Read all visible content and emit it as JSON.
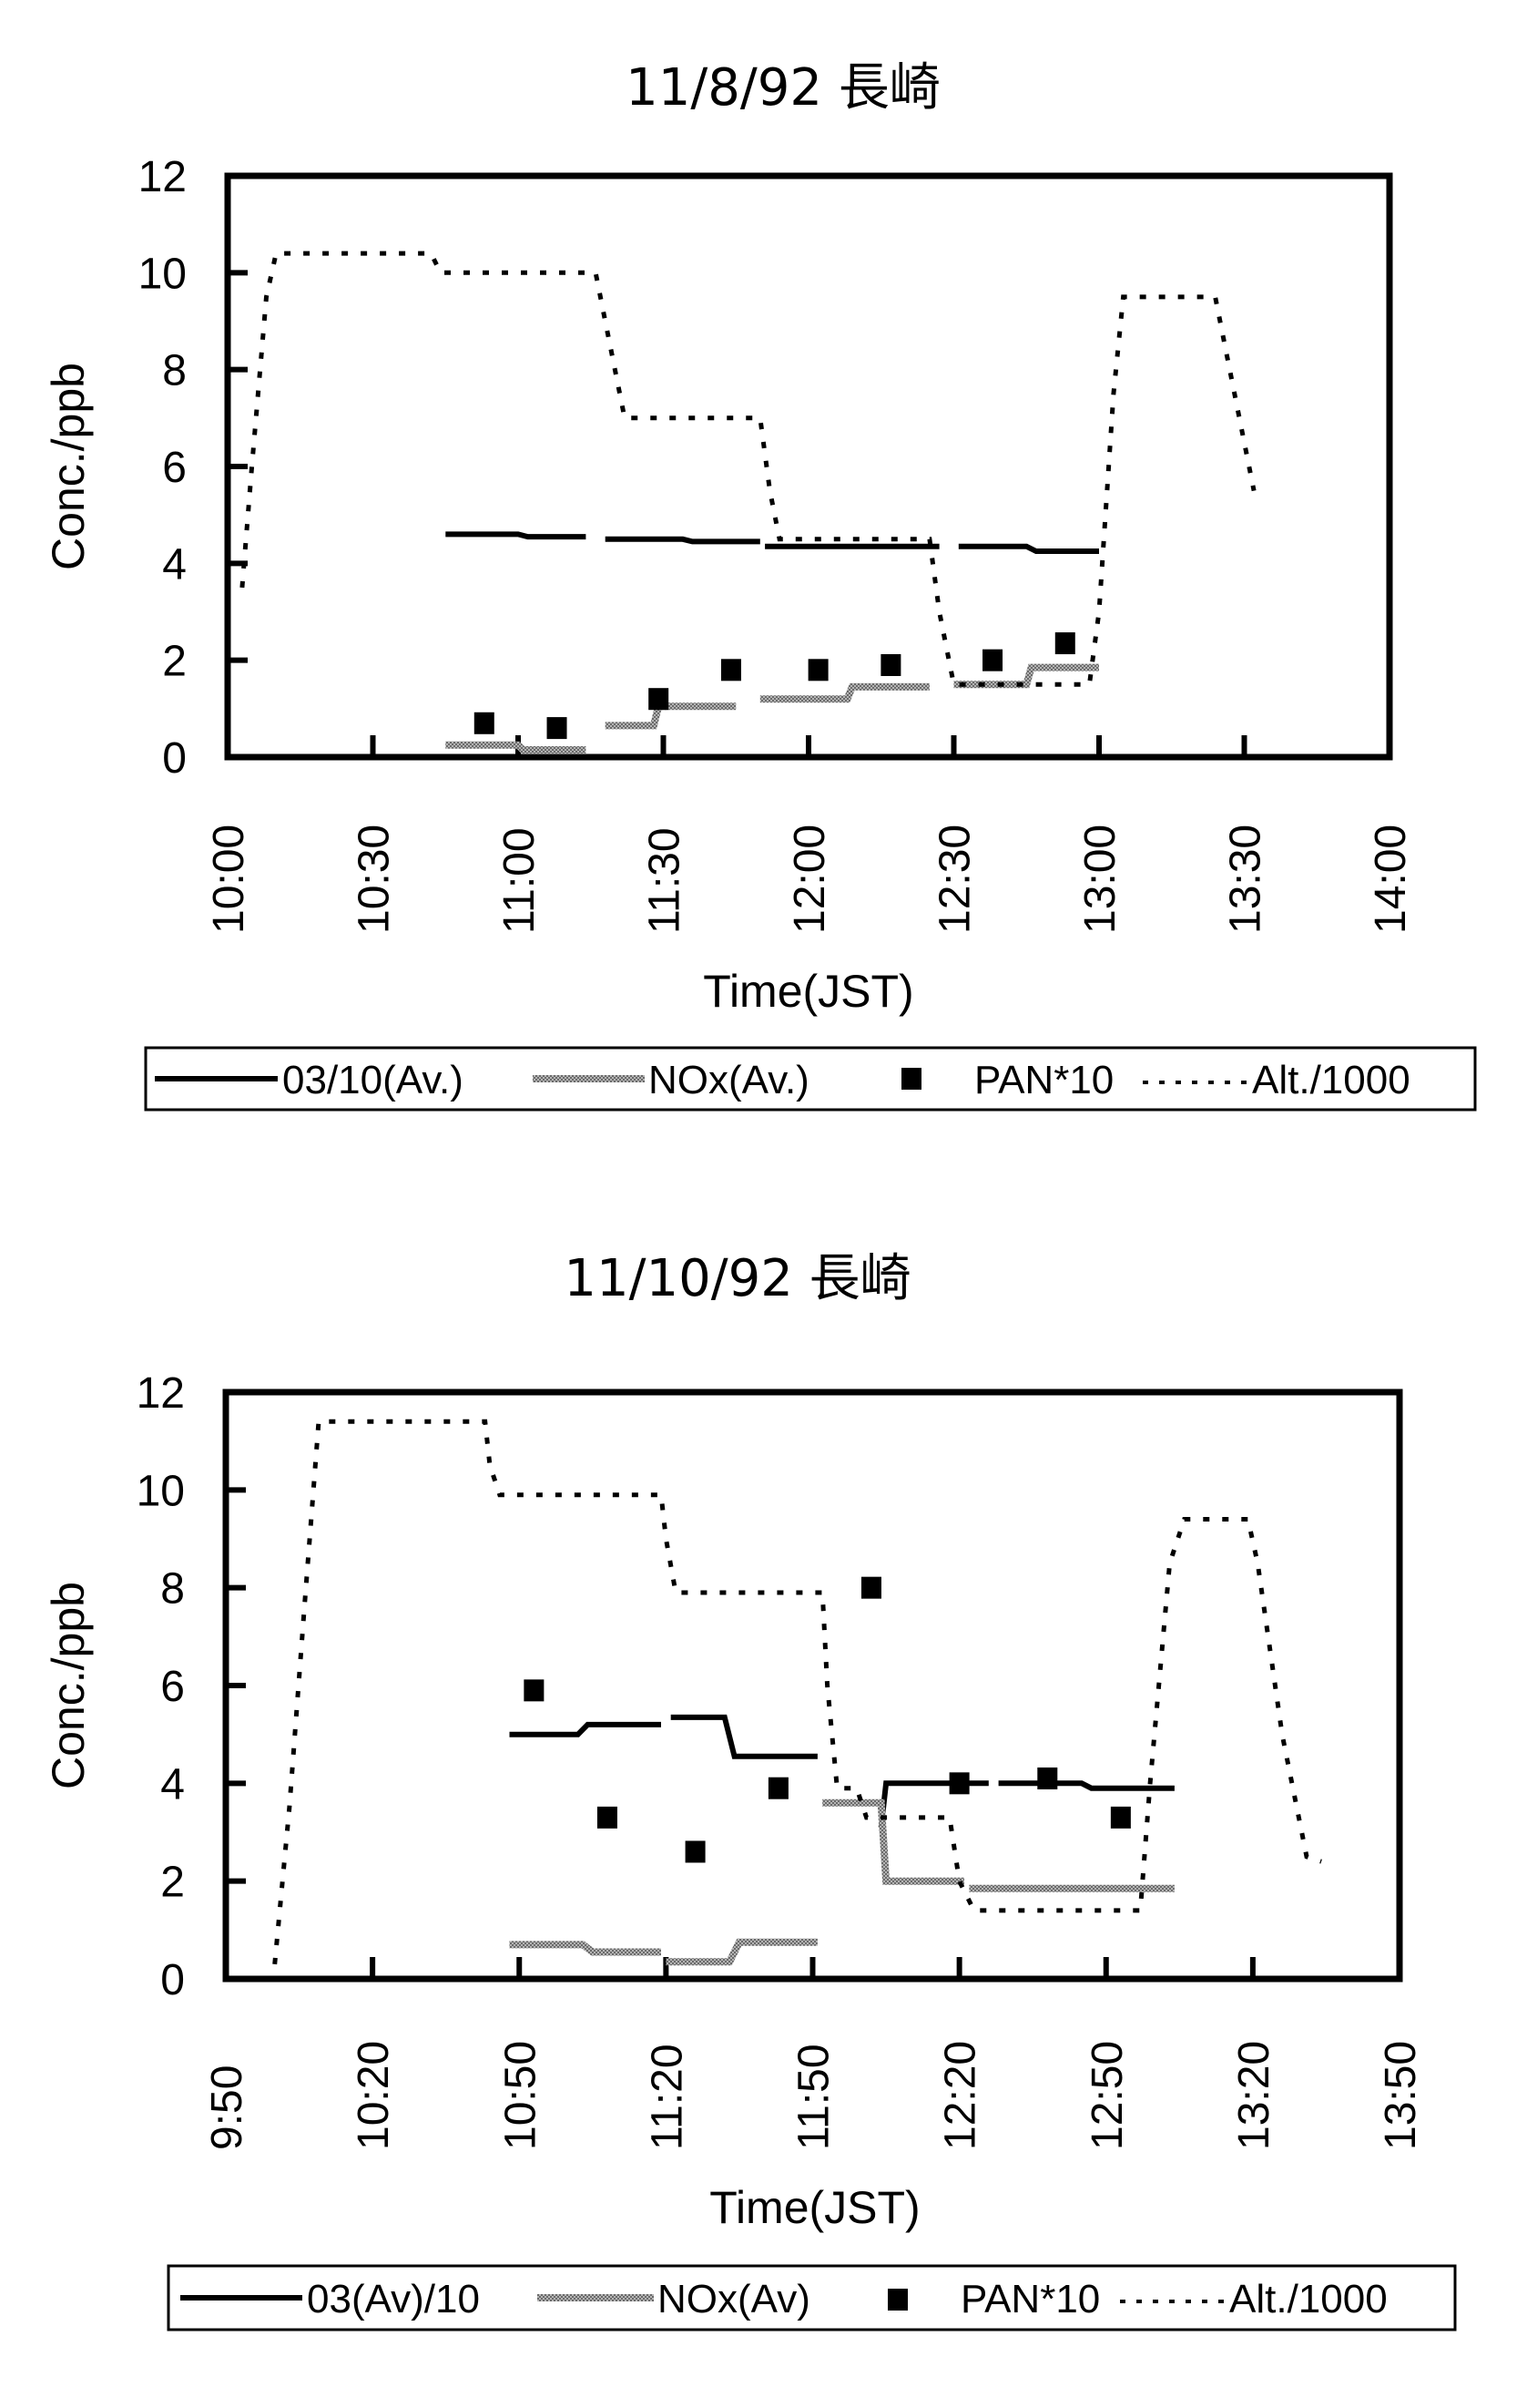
{
  "chart_data": [
    {
      "type": "line",
      "title": "11/8/92 長崎",
      "xlabel": "Time(JST)",
      "ylabel": "Conc./ppb",
      "xlim": [
        "10:00",
        "14:00"
      ],
      "ylim": [
        0,
        12
      ],
      "yticks": [
        0,
        2,
        4,
        6,
        8,
        10,
        12
      ],
      "xticks": [
        "10:00",
        "10:30",
        "11:00",
        "11:30",
        "12:00",
        "12:30",
        "13:00",
        "13:30",
        "14:00"
      ],
      "grid": false,
      "legend_position": "bottom",
      "legend": [
        "03/10(Av.)",
        "NOx(Av.)",
        "PAN*10",
        "Alt./1000"
      ],
      "series": [
        {
          "name": "03/10(Av.)",
          "style": "solid-black",
          "segments": [
            [
              [
                "10:45",
                4.6
              ],
              [
                "11:00",
                4.6
              ],
              [
                "11:02",
                4.55
              ],
              [
                "11:14",
                4.55
              ]
            ],
            [
              [
                "11:18",
                4.5
              ],
              [
                "11:34",
                4.5
              ],
              [
                "11:36",
                4.45
              ],
              [
                "11:50",
                4.45
              ]
            ],
            [
              [
                "11:51",
                4.35
              ],
              [
                "12:27",
                4.35
              ]
            ],
            [
              [
                "12:31",
                4.35
              ],
              [
                "12:45",
                4.35
              ],
              [
                "12:47",
                4.25
              ],
              [
                "13:00",
                4.25
              ]
            ]
          ]
        },
        {
          "name": "NOx(Av.)",
          "style": "solid-gray",
          "segments": [
            [
              [
                "10:45",
                0.25
              ],
              [
                "11:00",
                0.25
              ],
              [
                "11:01",
                0.15
              ],
              [
                "11:14",
                0.15
              ]
            ],
            [
              [
                "11:18",
                0.65
              ],
              [
                "11:28",
                0.65
              ],
              [
                "11:29",
                1.05
              ],
              [
                "11:45",
                1.05
              ]
            ],
            [
              [
                "11:50",
                1.2
              ],
              [
                "12:08",
                1.2
              ],
              [
                "12:09",
                1.45
              ],
              [
                "12:25",
                1.45
              ]
            ],
            [
              [
                "12:30",
                1.5
              ],
              [
                "12:45",
                1.5
              ],
              [
                "12:46",
                1.85
              ],
              [
                "13:00",
                1.85
              ]
            ]
          ]
        },
        {
          "name": "PAN*10",
          "style": "square-marker",
          "points": [
            [
              "10:53",
              0.7
            ],
            [
              "11:08",
              0.6
            ],
            [
              "11:29",
              1.2
            ],
            [
              "11:44",
              1.8
            ],
            [
              "12:02",
              1.8
            ],
            [
              "12:17",
              1.9
            ],
            [
              "12:38",
              2.0
            ],
            [
              "12:53",
              2.35
            ]
          ]
        },
        {
          "name": "Alt./1000",
          "style": "dotted-black",
          "segments": [
            [
              [
                "10:03",
                3.5
              ],
              [
                "10:05",
                6.0
              ],
              [
                "10:08",
                9.5
              ],
              [
                "10:10",
                10.4
              ],
              [
                "10:42",
                10.4
              ],
              [
                "10:44",
                10.0
              ],
              [
                "11:16",
                10.0
              ],
              [
                "11:18",
                9.0
              ],
              [
                "11:22",
                7.0
              ],
              [
                "11:50",
                7.0
              ],
              [
                "11:52",
                5.5
              ],
              [
                "11:54",
                4.5
              ],
              [
                "12:25",
                4.5
              ],
              [
                "12:27",
                3.0
              ],
              [
                "12:30",
                1.5
              ],
              [
                "12:58",
                1.5
              ],
              [
                "13:00",
                3.0
              ],
              [
                "13:03",
                7.5
              ],
              [
                "13:05",
                9.5
              ],
              [
                "13:24",
                9.5
              ],
              [
                "13:27",
                8.0
              ],
              [
                "13:32",
                5.5
              ]
            ]
          ]
        }
      ]
    },
    {
      "type": "line",
      "title": "11/10/92 長崎",
      "xlabel": "Time(JST)",
      "ylabel": "Conc./ppb",
      "xlim": [
        "9:50",
        "13:50"
      ],
      "ylim": [
        0,
        12
      ],
      "yticks": [
        0,
        2,
        4,
        6,
        8,
        10,
        12
      ],
      "xticks": [
        "9:50",
        "10:20",
        "10:50",
        "11:20",
        "11:50",
        "12:20",
        "12:50",
        "13:20",
        "13:50"
      ],
      "grid": false,
      "legend_position": "bottom",
      "legend": [
        "03(Av)/10",
        "NOx(Av)",
        "PAN*10",
        "Alt./1000"
      ],
      "series": [
        {
          "name": "03(Av)/10",
          "style": "solid-black",
          "segments": [
            [
              [
                "10:48",
                5.0
              ],
              [
                "11:02",
                5.0
              ],
              [
                "11:04",
                5.2
              ],
              [
                "11:19",
                5.2
              ]
            ],
            [
              [
                "11:21",
                5.35
              ],
              [
                "11:32",
                5.35
              ],
              [
                "11:34",
                4.55
              ],
              [
                "11:51",
                4.55
              ]
            ],
            [
              [
                "12:04",
                3.1
              ],
              [
                "12:05",
                4.0
              ],
              [
                "12:26",
                4.0
              ]
            ],
            [
              [
                "12:28",
                4.0
              ],
              [
                "12:45",
                4.0
              ],
              [
                "12:47",
                3.9
              ],
              [
                "13:04",
                3.9
              ]
            ]
          ]
        },
        {
          "name": "NOx(Av)",
          "style": "solid-gray",
          "segments": [
            [
              [
                "10:48",
                0.7
              ],
              [
                "11:03",
                0.7
              ],
              [
                "11:05",
                0.55
              ],
              [
                "11:19",
                0.55
              ]
            ],
            [
              [
                "11:20",
                0.35
              ],
              [
                "11:33",
                0.35
              ],
              [
                "11:35",
                0.75
              ],
              [
                "11:51",
                0.75
              ]
            ],
            [
              [
                "11:52",
                3.6
              ],
              [
                "12:04",
                3.6
              ],
              [
                "12:05",
                2.0
              ],
              [
                "12:21",
                2.0
              ]
            ],
            [
              [
                "12:22",
                1.85
              ],
              [
                "13:04",
                1.85
              ]
            ]
          ]
        },
        {
          "name": "PAN*10",
          "style": "square-marker",
          "points": [
            [
              "10:53",
              5.9
            ],
            [
              "11:08",
              3.3
            ],
            [
              "11:26",
              2.6
            ],
            [
              "11:43",
              3.9
            ],
            [
              "12:02",
              8.0
            ],
            [
              "12:20",
              4.0
            ],
            [
              "12:38",
              4.1
            ],
            [
              "12:53",
              3.3
            ]
          ]
        },
        {
          "name": "Alt./1000",
          "style": "dotted-black",
          "segments": [
            [
              [
                "10:00",
                0.3
              ],
              [
                "10:03",
                3.5
              ],
              [
                "10:06",
                7.5
              ],
              [
                "10:09",
                11.4
              ],
              [
                "10:43",
                11.4
              ],
              [
                "10:44",
                10.5
              ],
              [
                "10:46",
                9.9
              ],
              [
                "11:19",
                9.9
              ],
              [
                "11:20",
                9.0
              ],
              [
                "11:22",
                7.9
              ],
              [
                "11:52",
                7.9
              ],
              [
                "11:53",
                6.0
              ],
              [
                "11:55",
                3.9
              ],
              [
                "11:59",
                3.9
              ],
              [
                "12:01",
                3.3
              ],
              [
                "12:18",
                3.3
              ],
              [
                "12:20",
                2.0
              ],
              [
                "12:23",
                1.4
              ],
              [
                "12:57",
                1.4
              ],
              [
                "12:59",
                4.0
              ],
              [
                "13:03",
                8.5
              ],
              [
                "13:06",
                9.4
              ],
              [
                "13:19",
                9.4
              ],
              [
                "13:21",
                8.5
              ],
              [
                "13:26",
                5.0
              ],
              [
                "13:31",
                2.5
              ],
              [
                "13:34",
                2.4
              ]
            ]
          ]
        }
      ]
    }
  ]
}
